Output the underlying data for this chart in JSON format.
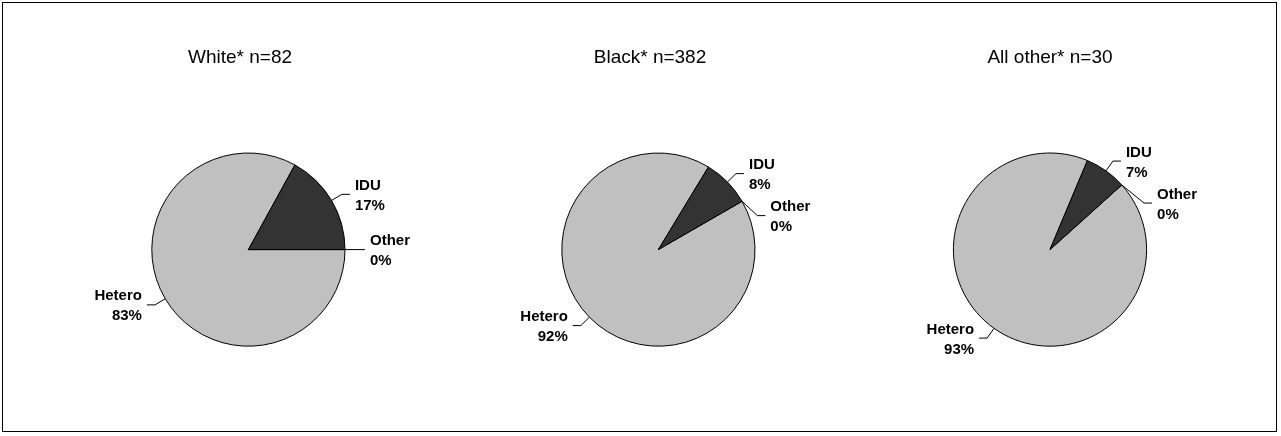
{
  "chart_data": [
    {
      "type": "pie",
      "title": "White* n=82",
      "categories": [
        "Hetero",
        "IDU",
        "Other"
      ],
      "values": [
        83,
        17,
        0
      ],
      "colors": [
        "#c0c0c0",
        "#333333",
        "#ffffff"
      ],
      "value_labels": [
        "83%",
        "17%",
        "0%"
      ]
    },
    {
      "type": "pie",
      "title": "Black* n=382",
      "categories": [
        "Hetero",
        "IDU",
        "Other"
      ],
      "values": [
        92,
        8,
        0
      ],
      "colors": [
        "#c0c0c0",
        "#333333",
        "#ffffff"
      ],
      "value_labels": [
        "92%",
        "8%",
        "0%"
      ]
    },
    {
      "type": "pie",
      "title": "All other* n=30",
      "categories": [
        "Hetero",
        "IDU",
        "Other"
      ],
      "values": [
        93,
        7,
        0
      ],
      "colors": [
        "#c0c0c0",
        "#333333",
        "#ffffff"
      ],
      "value_labels": [
        "93%",
        "7%",
        "0%"
      ]
    }
  ]
}
